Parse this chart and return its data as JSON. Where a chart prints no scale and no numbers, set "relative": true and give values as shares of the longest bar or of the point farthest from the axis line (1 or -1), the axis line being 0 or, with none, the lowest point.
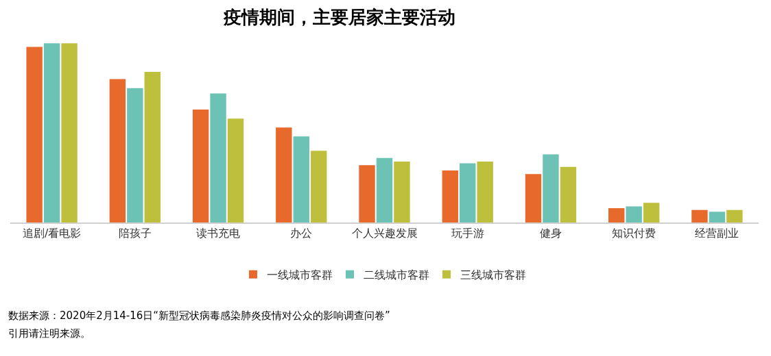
{
  "chart_data": {
    "type": "bar",
    "title": "疫情期间，主要居家主要活动",
    "relative": true,
    "legend": "bottom",
    "grid": false,
    "categories": [
      "追剧/看电影",
      "陪孩子",
      "读书充电",
      "办公",
      "个人兴趣发展",
      "玩手游",
      "健身",
      "知识付费",
      "经营副业"
    ],
    "series": [
      {
        "name": "一线城市客群",
        "color": "#e8692c",
        "values": [
          0.98,
          0.8,
          0.63,
          0.53,
          0.32,
          0.29,
          0.27,
          0.08,
          0.07
        ]
      },
      {
        "name": "二线城市客群",
        "color": "#6cc2b4",
        "values": [
          1,
          0.75,
          0.72,
          0.48,
          0.36,
          0.33,
          0.38,
          0.09,
          0.06
        ]
      },
      {
        "name": "三线城市客群",
        "color": "#bfbf3e",
        "values": [
          1,
          0.84,
          0.58,
          0.4,
          0.34,
          0.34,
          0.31,
          0.11,
          0.07
        ]
      }
    ],
    "annotations": [
      "数据来源：2020年2月14-16日“新型冠状病毒感染肺炎疫情对公众的影响调查问卷”",
      "引用请注明来源。"
    ]
  }
}
